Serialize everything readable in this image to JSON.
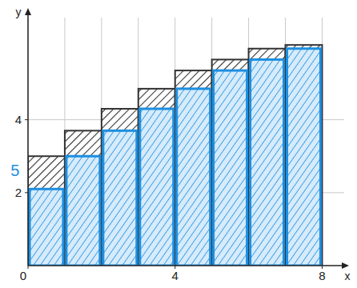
{
  "chart_data": {
    "type": "histogram",
    "xlabel": "x",
    "ylabel": "y",
    "bins": [
      0,
      1,
      2,
      3,
      4,
      5,
      6,
      7,
      8
    ],
    "series": [
      {
        "color": "#333333",
        "values": [
          3.0,
          3.7,
          4.3,
          4.85,
          5.35,
          5.65,
          5.95,
          6.05
        ]
      },
      {
        "color": "#1e8fe0",
        "values": [
          2.1,
          3.0,
          3.7,
          4.3,
          4.85,
          5.35,
          5.65,
          5.95
        ]
      }
    ],
    "xlim": [
      0,
      8.6
    ],
    "ylim": [
      0,
      6.8
    ],
    "xticks": [
      0,
      4,
      8
    ],
    "yticks": [
      2,
      4
    ],
    "grid": true,
    "annotations": [
      {
        "text": "5",
        "x": -0.35,
        "y": 2.45,
        "color": "#1e8fe0"
      }
    ]
  }
}
